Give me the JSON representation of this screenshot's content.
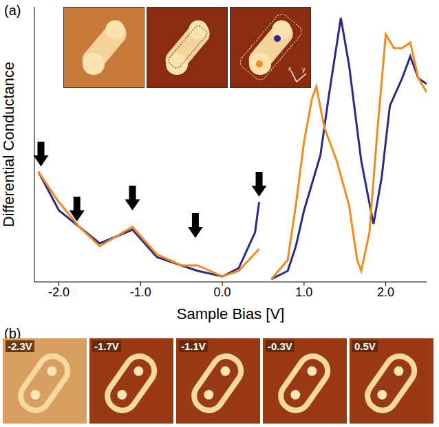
{
  "chart_data": {
    "type": "line",
    "panel_label": "(a)",
    "x_label": "Sample Bias [V]",
    "y_label": "Differential Conductance",
    "xlim": [
      -2.3,
      2.5
    ],
    "xticks": [
      {
        "value": -2,
        "label": "-2.0"
      },
      {
        "value": -1,
        "label": "-1.0"
      },
      {
        "value": 0,
        "label": "0.0"
      },
      {
        "value": 1,
        "label": "1.0"
      },
      {
        "value": 2,
        "label": "2.0"
      }
    ],
    "ylim": [
      0,
      100
    ],
    "yticks": [
      0,
      50,
      100
    ],
    "tick_labels": "x",
    "series": [
      {
        "color": "#2b2a86",
        "x": [
          -2.25,
          -2.0,
          -1.5,
          -1.1,
          -0.8,
          -0.5,
          -0.3,
          0.0,
          0.2,
          0.4,
          0.45,
          0.55,
          0.6,
          0.8,
          0.9,
          1.0,
          1.2,
          1.3,
          1.45,
          1.55,
          1.7,
          1.85,
          1.95,
          2.05,
          2.2,
          2.3,
          2.4,
          2.5
        ],
        "values": [
          40,
          26,
          14,
          19,
          9,
          6,
          4,
          2,
          5,
          18,
          29,
          null,
          1,
          4,
          13,
          26,
          46,
          67,
          96,
          79,
          44,
          21,
          38,
          64,
          74,
          82,
          74,
          72
        ]
      },
      {
        "color": "#f28a1e",
        "x": [
          -2.25,
          -2.0,
          -1.75,
          -1.5,
          -1.1,
          -0.8,
          -0.5,
          -0.3,
          0.0,
          0.2,
          0.45,
          0.55,
          0.6,
          0.8,
          0.9,
          1.0,
          1.1,
          1.15,
          1.25,
          1.4,
          1.55,
          1.65,
          1.7,
          1.8,
          1.9,
          2.0,
          2.1,
          2.2,
          2.3,
          2.4,
          2.5
        ],
        "values": [
          40,
          29,
          20,
          13,
          20,
          10,
          6,
          6,
          2,
          4,
          12,
          null,
          1,
          8,
          28,
          51,
          67,
          71,
          56,
          44,
          28,
          8,
          4,
          18,
          56,
          90,
          85,
          85,
          87,
          74,
          69
        ]
      }
    ],
    "arrows": [
      {
        "x": -2.22,
        "y": 41
      },
      {
        "x": -1.78,
        "y": 21
      },
      {
        "x": -1.1,
        "y": 25
      },
      {
        "x": -0.33,
        "y": 15
      },
      {
        "x": 0.45,
        "y": 30
      }
    ],
    "inset_axes": [
      "x",
      "y"
    ]
  },
  "panel_b": {
    "label": "(b)",
    "images": [
      "-2.3V",
      "-1.7V",
      "-1.1V",
      "-0.3V",
      "0.5V"
    ]
  }
}
